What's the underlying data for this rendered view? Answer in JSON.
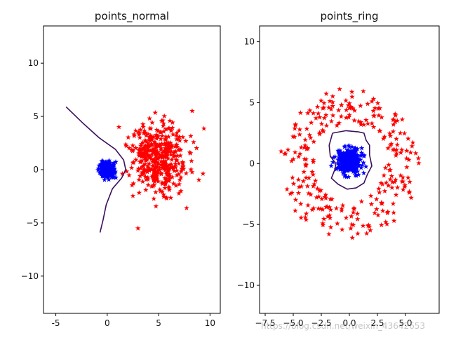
{
  "chart_data": [
    {
      "type": "scatter",
      "title": "points_normal",
      "xlabel": "",
      "ylabel": "",
      "xlim": [
        -6.2,
        11.0
      ],
      "ylim": [
        -13.5,
        13.5
      ],
      "xticks": [
        -5,
        0,
        5,
        10
      ],
      "yticks": [
        -10,
        -5,
        0,
        5,
        10
      ],
      "grid": false,
      "series": [
        {
          "marker": "star",
          "color": "#ff0000",
          "distribution": "gaussian",
          "center": [
            5.0,
            1.0
          ],
          "spread": [
            1.35,
            1.55
          ],
          "count": 450
        },
        {
          "marker": "star",
          "color": "#0000ff",
          "distribution": "gaussian",
          "center": [
            0.0,
            0.0
          ],
          "spread": [
            0.35,
            0.35
          ],
          "count": 300
        }
      ],
      "decision_boundary": {
        "color": "#3b0f5c",
        "points": [
          [
            -4.0,
            5.9
          ],
          [
            -2.4,
            4.4
          ],
          [
            -0.8,
            3.0
          ],
          [
            0.8,
            1.9
          ],
          [
            1.6,
            0.9
          ],
          [
            1.8,
            0.0
          ],
          [
            1.4,
            -0.8
          ],
          [
            0.5,
            -1.8
          ],
          [
            -0.1,
            -3.3
          ],
          [
            -0.4,
            -4.7
          ],
          [
            -0.7,
            -5.9
          ]
        ]
      }
    },
    {
      "type": "scatter",
      "title": "points_ring",
      "xlabel": "",
      "ylabel": "",
      "xlim": [
        -8.0,
        8.0
      ],
      "ylim": [
        -12.3,
        11.3
      ],
      "xticks": [
        -7.5,
        -5.0,
        -2.5,
        0.0,
        2.5,
        5.0
      ],
      "xtick_labels": [
        "−7.5",
        "−5.0",
        "−2.5",
        "0.0",
        "2.5",
        "5.0"
      ],
      "yticks": [
        -10,
        -5,
        0,
        5,
        10
      ],
      "grid": false,
      "series": [
        {
          "marker": "star",
          "color": "#ff0000",
          "distribution": "ring",
          "center": [
            0.0,
            0.0
          ],
          "radius_range": [
            3.2,
            6.2
          ],
          "count": 280
        },
        {
          "marker": "star",
          "color": "#0000ff",
          "distribution": "gaussian",
          "center": [
            0.0,
            0.2
          ],
          "spread": [
            0.6,
            0.55
          ],
          "count": 280
        }
      ],
      "decision_boundary": {
        "color": "#3b0f5c",
        "points": [
          [
            -1.5,
            2.5
          ],
          [
            -0.3,
            2.7
          ],
          [
            0.8,
            2.6
          ],
          [
            1.3,
            2.5
          ],
          [
            1.5,
            1.9
          ],
          [
            1.8,
            1.5
          ],
          [
            1.8,
            0.7
          ],
          [
            2.0,
            -0.2
          ],
          [
            1.6,
            -0.9
          ],
          [
            1.3,
            -1.6
          ],
          [
            0.6,
            -2.0
          ],
          [
            -0.2,
            -2.1
          ],
          [
            -1.0,
            -1.7
          ],
          [
            -1.6,
            -1.2
          ],
          [
            -1.3,
            -0.5
          ],
          [
            -1.2,
            0.0
          ],
          [
            -1.7,
            0.6
          ],
          [
            -1.8,
            1.5
          ],
          [
            -1.5,
            2.5
          ]
        ]
      }
    }
  ],
  "watermark": "https://blog.csdn.net/weixin_43642653"
}
